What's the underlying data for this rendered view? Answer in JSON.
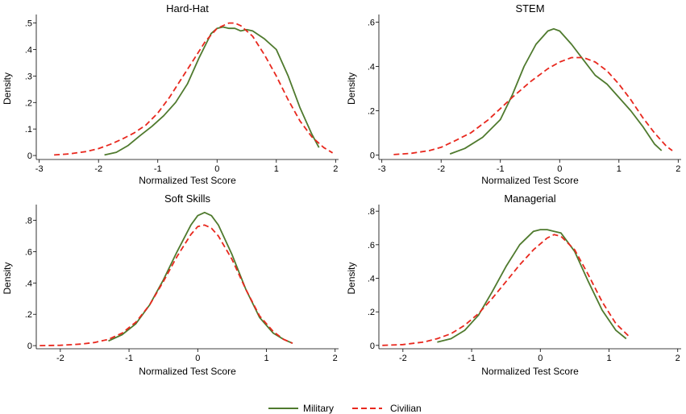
{
  "colors": {
    "military": "#4f7a2e",
    "civilian": "#e8281e"
  },
  "legend": {
    "placement": "bottom-center",
    "items": [
      {
        "label": "Military",
        "style": "solid",
        "color": "#4f7a2e"
      },
      {
        "label": "Civilian",
        "style": "dashed",
        "color": "#e8281e"
      }
    ]
  },
  "chart_data": [
    {
      "type": "line",
      "title": "Hard-Hat",
      "xlabel": "Normalized Test Score",
      "ylabel": "Density",
      "xlim": [
        -3.05,
        2.05
      ],
      "ylim": [
        -0.015,
        0.52
      ],
      "xticks": [
        -3,
        -2,
        -1,
        0,
        1,
        2
      ],
      "yticks": [
        0,
        0.1,
        0.2,
        0.3,
        0.4,
        0.5
      ],
      "ytick_labels": [
        "0",
        ".1",
        ".2",
        ".3",
        ".4",
        ".5"
      ],
      "grid": false,
      "series": [
        {
          "name": "Military",
          "style": "solid",
          "x": [
            -1.9,
            -1.7,
            -1.5,
            -1.3,
            -1.1,
            -0.9,
            -0.7,
            -0.5,
            -0.3,
            -0.1,
            0.0,
            0.1,
            0.2,
            0.3,
            0.4,
            0.5,
            0.6,
            0.8,
            1.0,
            1.2,
            1.4,
            1.6,
            1.72
          ],
          "y": [
            0.002,
            0.012,
            0.038,
            0.075,
            0.11,
            0.15,
            0.2,
            0.27,
            0.37,
            0.46,
            0.48,
            0.485,
            0.48,
            0.48,
            0.47,
            0.475,
            0.47,
            0.44,
            0.4,
            0.3,
            0.18,
            0.08,
            0.03
          ]
        },
        {
          "name": "Civilian",
          "style": "dashed",
          "x": [
            -2.75,
            -2.5,
            -2.2,
            -2.0,
            -1.8,
            -1.6,
            -1.4,
            -1.2,
            -1.0,
            -0.8,
            -0.6,
            -0.4,
            -0.2,
            0.0,
            0.2,
            0.3,
            0.4,
            0.6,
            0.8,
            1.0,
            1.2,
            1.4,
            1.6,
            1.8,
            1.95
          ],
          "y": [
            0.002,
            0.006,
            0.015,
            0.026,
            0.042,
            0.062,
            0.085,
            0.115,
            0.16,
            0.22,
            0.29,
            0.36,
            0.43,
            0.48,
            0.5,
            0.5,
            0.49,
            0.45,
            0.38,
            0.3,
            0.21,
            0.13,
            0.07,
            0.03,
            0.01
          ]
        }
      ]
    },
    {
      "type": "line",
      "title": "STEM",
      "xlabel": "Normalized Test Score",
      "ylabel": "Density",
      "xlim": [
        -3.05,
        2.05
      ],
      "ylim": [
        -0.02,
        0.62
      ],
      "xticks": [
        -3,
        -2,
        -1,
        0,
        1,
        2
      ],
      "yticks": [
        0,
        0.2,
        0.4,
        0.6
      ],
      "ytick_labels": [
        "0",
        ".2",
        ".4",
        ".6"
      ],
      "grid": false,
      "series": [
        {
          "name": "Military",
          "style": "solid",
          "x": [
            -1.85,
            -1.6,
            -1.3,
            -1.0,
            -0.8,
            -0.6,
            -0.4,
            -0.2,
            -0.1,
            0.0,
            0.2,
            0.4,
            0.6,
            0.8,
            1.0,
            1.2,
            1.4,
            1.6,
            1.72
          ],
          "y": [
            0.005,
            0.03,
            0.08,
            0.16,
            0.27,
            0.4,
            0.5,
            0.56,
            0.57,
            0.56,
            0.5,
            0.43,
            0.36,
            0.32,
            0.26,
            0.2,
            0.13,
            0.05,
            0.02
          ]
        },
        {
          "name": "Civilian",
          "style": "dashed",
          "x": [
            -2.8,
            -2.5,
            -2.2,
            -2.0,
            -1.8,
            -1.5,
            -1.2,
            -1.0,
            -0.8,
            -0.5,
            -0.2,
            0.0,
            0.2,
            0.4,
            0.6,
            0.8,
            1.0,
            1.2,
            1.4,
            1.6,
            1.8,
            1.9
          ],
          "y": [
            0.002,
            0.008,
            0.02,
            0.035,
            0.06,
            0.1,
            0.16,
            0.21,
            0.26,
            0.33,
            0.39,
            0.42,
            0.44,
            0.44,
            0.42,
            0.38,
            0.32,
            0.25,
            0.17,
            0.1,
            0.04,
            0.02
          ]
        }
      ]
    },
    {
      "type": "line",
      "title": "Soft Skills",
      "xlabel": "Normalized Test Score",
      "ylabel": "Density",
      "xlim": [
        -2.35,
        2.05
      ],
      "ylim": [
        -0.02,
        0.88
      ],
      "xticks": [
        -2,
        -1,
        0,
        1,
        2
      ],
      "yticks": [
        0,
        0.2,
        0.4,
        0.6,
        0.8
      ],
      "ytick_labels": [
        "0",
        ".2",
        ".4",
        ".6",
        ".8"
      ],
      "grid": false,
      "series": [
        {
          "name": "Military",
          "style": "solid",
          "x": [
            -1.3,
            -1.1,
            -0.9,
            -0.7,
            -0.5,
            -0.3,
            -0.1,
            0.0,
            0.1,
            0.2,
            0.3,
            0.5,
            0.7,
            0.9,
            1.1,
            1.25,
            1.38
          ],
          "y": [
            0.03,
            0.07,
            0.14,
            0.26,
            0.42,
            0.6,
            0.77,
            0.83,
            0.85,
            0.83,
            0.77,
            0.58,
            0.36,
            0.18,
            0.08,
            0.04,
            0.015
          ]
        },
        {
          "name": "Civilian",
          "style": "dashed",
          "x": [
            -2.3,
            -2.0,
            -1.7,
            -1.5,
            -1.3,
            -1.1,
            -0.9,
            -0.7,
            -0.5,
            -0.3,
            -0.1,
            0.0,
            0.1,
            0.2,
            0.3,
            0.5,
            0.7,
            0.9,
            1.1,
            1.25,
            1.38
          ],
          "y": [
            0.0,
            0.002,
            0.01,
            0.02,
            0.04,
            0.08,
            0.15,
            0.26,
            0.41,
            0.57,
            0.71,
            0.76,
            0.77,
            0.75,
            0.7,
            0.55,
            0.36,
            0.19,
            0.09,
            0.04,
            0.015
          ]
        }
      ]
    },
    {
      "type": "line",
      "title": "Managerial",
      "xlabel": "Normalized Test Score",
      "ylabel": "Density",
      "xlim": [
        -2.35,
        2.05
      ],
      "ylim": [
        -0.02,
        0.82
      ],
      "xticks": [
        -2,
        -1,
        0,
        1,
        2
      ],
      "yticks": [
        0,
        0.2,
        0.4,
        0.6,
        0.8
      ],
      "ytick_labels": [
        "0",
        ".2",
        ".4",
        ".6",
        ".8"
      ],
      "grid": false,
      "series": [
        {
          "name": "Military",
          "style": "solid",
          "x": [
            -1.5,
            -1.3,
            -1.1,
            -0.9,
            -0.7,
            -0.5,
            -0.3,
            -0.1,
            0.0,
            0.1,
            0.2,
            0.3,
            0.5,
            0.7,
            0.9,
            1.1,
            1.25
          ],
          "y": [
            0.02,
            0.04,
            0.09,
            0.18,
            0.32,
            0.47,
            0.6,
            0.68,
            0.69,
            0.69,
            0.68,
            0.67,
            0.56,
            0.38,
            0.21,
            0.09,
            0.04
          ]
        },
        {
          "name": "Civilian",
          "style": "dashed",
          "x": [
            -2.3,
            -2.0,
            -1.7,
            -1.5,
            -1.3,
            -1.1,
            -0.9,
            -0.7,
            -0.5,
            -0.3,
            -0.1,
            0.1,
            0.2,
            0.3,
            0.5,
            0.7,
            0.9,
            1.1,
            1.3
          ],
          "y": [
            0.0,
            0.005,
            0.02,
            0.04,
            0.07,
            0.12,
            0.19,
            0.28,
            0.38,
            0.48,
            0.57,
            0.64,
            0.66,
            0.65,
            0.57,
            0.42,
            0.26,
            0.13,
            0.05
          ]
        }
      ]
    }
  ]
}
